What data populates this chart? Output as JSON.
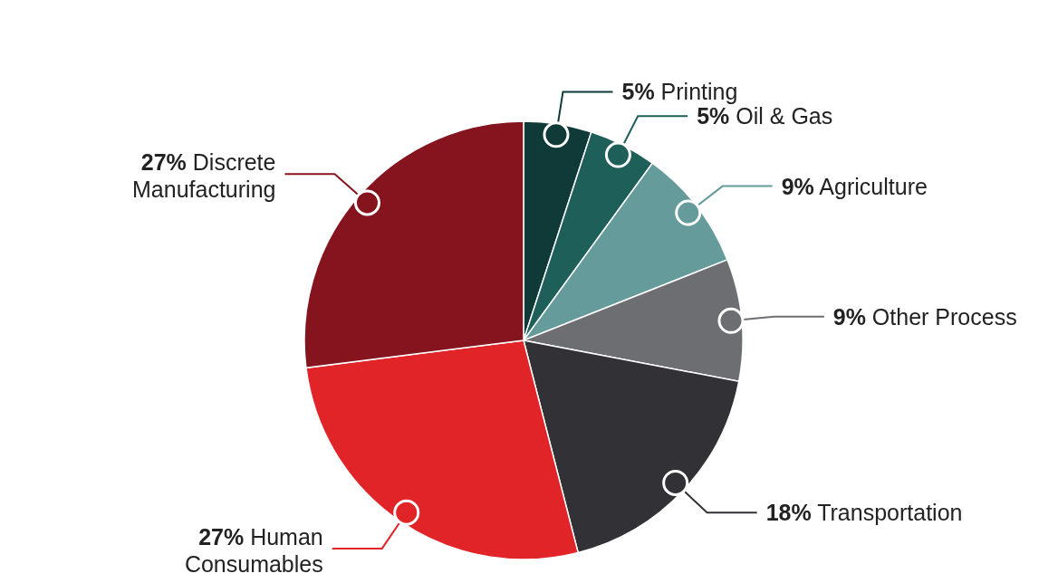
{
  "chart_data": {
    "type": "pie",
    "categories": [
      "Printing",
      "Oil & Gas",
      "Agriculture",
      "Other Process",
      "Transportation",
      "Human Consumables",
      "Discrete Manufacturing"
    ],
    "values": [
      5,
      5,
      9,
      9,
      18,
      27,
      27
    ],
    "value_labels": [
      "5%",
      "5%",
      "9%",
      "9%",
      "18%",
      "27%",
      "27%"
    ],
    "colors": [
      "#0f3a38",
      "#1e5f5a",
      "#659b9a",
      "#6d6e72",
      "#323136",
      "#e02428",
      "#85141f"
    ]
  }
}
